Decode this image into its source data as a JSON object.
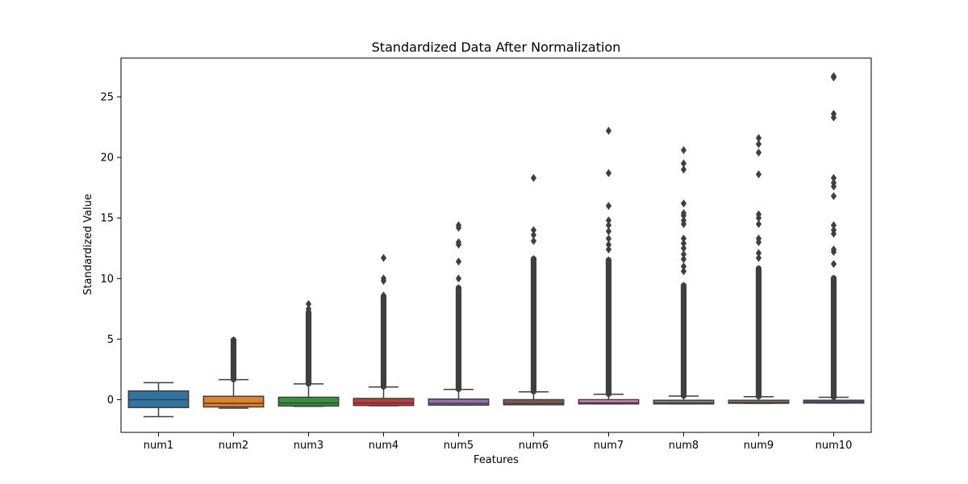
{
  "chart_data": {
    "type": "boxplot",
    "title": "Standardized Data After Normalization",
    "xlabel": "Features",
    "ylabel": "Standardized Value",
    "ylim": [
      -2.7,
      28.2
    ],
    "yticks": [
      0,
      5,
      10,
      15,
      20,
      25
    ],
    "grid": false,
    "legend": "none",
    "categories": [
      "num1",
      "num2",
      "num3",
      "num4",
      "num5",
      "num6",
      "num7",
      "num8",
      "num9",
      "num10"
    ],
    "series": [
      {
        "category": "num1",
        "color": "#3274a1",
        "whisker_low": -1.4,
        "q1": -0.65,
        "median": 0.0,
        "q3": 0.72,
        "whisker_high": 1.4,
        "outliers": []
      },
      {
        "category": "num2",
        "color": "#e1812c",
        "whisker_low": -0.7,
        "q1": -0.6,
        "median": -0.3,
        "q3": 0.28,
        "whisker_high": 1.65,
        "outliers_range": [
          1.7,
          4.9
        ],
        "outliers": [
          4.9,
          4.7
        ]
      },
      {
        "category": "num3",
        "color": "#3a923a",
        "whisker_low": -0.55,
        "q1": -0.52,
        "median": -0.28,
        "q3": 0.2,
        "whisker_high": 1.3,
        "outliers_range": [
          1.35,
          7.2
        ],
        "outliers": [
          7.9,
          7.5
        ]
      },
      {
        "category": "num4",
        "color": "#c03d3e",
        "whisker_low": -0.5,
        "q1": -0.48,
        "median": -0.28,
        "q3": 0.1,
        "whisker_high": 1.05,
        "outliers_range": [
          1.1,
          8.5
        ],
        "outliers": [
          11.7,
          10.0,
          9.8,
          8.6
        ]
      },
      {
        "category": "num5",
        "color": "#9372b2",
        "whisker_low": -0.45,
        "q1": -0.45,
        "median": -0.3,
        "q3": 0.05,
        "whisker_high": 0.85,
        "outliers_range": [
          0.9,
          9.2
        ],
        "outliers": [
          14.4,
          14.2,
          13.0,
          12.8,
          11.4,
          10.0
        ]
      },
      {
        "category": "num6",
        "color": "#845b53",
        "whisker_low": -0.42,
        "q1": -0.42,
        "median": -0.3,
        "q3": 0.0,
        "whisker_high": 0.65,
        "outliers_range": [
          0.7,
          11.6
        ],
        "outliers": [
          18.3,
          14.0,
          13.6,
          13.1
        ]
      },
      {
        "category": "num7",
        "color": "#d684bd",
        "whisker_low": -0.35,
        "q1": -0.35,
        "median": -0.25,
        "q3": 0.0,
        "whisker_high": 0.45,
        "outliers_range": [
          0.5,
          11.5
        ],
        "outliers": [
          22.2,
          18.7,
          16.0,
          14.8,
          14.4,
          13.9,
          13.3,
          12.8,
          12.4
        ]
      },
      {
        "category": "num8",
        "color": "#7f7f7f",
        "whisker_low": -0.35,
        "q1": -0.35,
        "median": -0.28,
        "q3": -0.05,
        "whisker_high": 0.3,
        "outliers_range": [
          0.35,
          9.4
        ],
        "outliers": [
          20.6,
          19.5,
          19.0,
          16.2,
          15.4,
          15.2,
          14.8,
          14.5,
          13.3,
          12.9,
          12.5,
          12.0,
          11.6,
          11.0,
          10.6
        ]
      },
      {
        "category": "num9",
        "color": "#a9aa35",
        "whisker_low": -0.3,
        "q1": -0.3,
        "median": -0.2,
        "q3": -0.05,
        "whisker_high": 0.25,
        "outliers_range": [
          0.3,
          10.8
        ],
        "outliers": [
          21.6,
          21.1,
          20.4,
          18.6,
          15.3,
          15.0,
          14.5,
          13.3,
          13.0,
          12.1,
          11.7
        ]
      },
      {
        "category": "num10",
        "color": "#2e9fbf",
        "whisker_low": -0.28,
        "q1": -0.28,
        "median": -0.18,
        "q3": -0.05,
        "whisker_high": 0.2,
        "outliers_range": [
          0.25,
          10.0
        ],
        "outliers": [
          26.7,
          26.6,
          23.6,
          23.3,
          18.3,
          17.9,
          17.6,
          16.8,
          14.4,
          14.0,
          13.7,
          12.4,
          12.2,
          11.2
        ]
      }
    ]
  }
}
